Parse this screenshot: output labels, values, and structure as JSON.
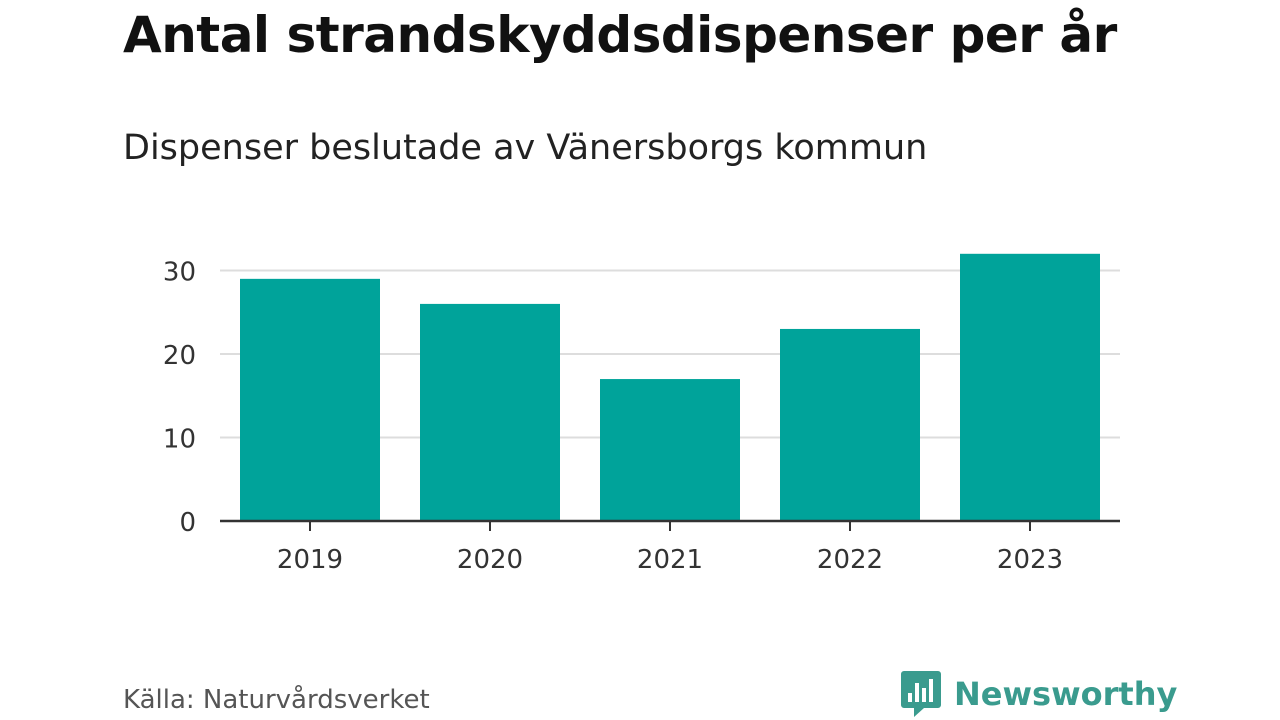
{
  "title": "Antal strandskyddsdispenser per år",
  "subtitle": "Dispenser beslutade av Vänersborgs kommun",
  "source": "Källa: Naturvårdsverket",
  "brand": {
    "name": "Newsworthy",
    "icon": "newsworthy-logo-icon",
    "color": "#3a9b8e"
  },
  "colors": {
    "bar": "#00a39a",
    "grid": "#dddddd",
    "axis": "#333333",
    "tick_text": "#333333"
  },
  "chart_data": {
    "type": "bar",
    "title": "Antal strandskyddsdispenser per år",
    "subtitle": "Dispenser beslutade av Vänersborgs kommun",
    "categories": [
      "2019",
      "2020",
      "2021",
      "2022",
      "2023"
    ],
    "values": [
      29,
      26,
      17,
      23,
      32
    ],
    "xlabel": "",
    "ylabel": "",
    "ylim": [
      0,
      32
    ],
    "yticks": [
      0,
      10,
      20,
      30
    ],
    "ytick_labels": [
      "0",
      "10",
      "20",
      "30"
    ],
    "grid": true,
    "legend": "none"
  }
}
